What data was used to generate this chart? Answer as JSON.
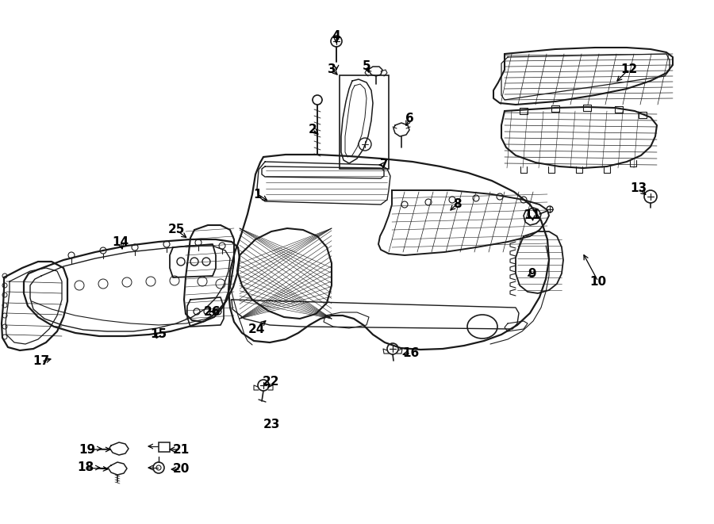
{
  "bg_color": "#ffffff",
  "line_color": "#1a1a1a",
  "figsize": [
    9.0,
    6.61
  ],
  "dpi": 100,
  "labels": [
    [
      "1",
      325,
      245,
      340,
      255
    ],
    [
      "2",
      394,
      163,
      404,
      172
    ],
    [
      "3",
      418,
      87,
      428,
      97
    ],
    [
      "4",
      424,
      45,
      424,
      58
    ],
    [
      "5",
      462,
      83,
      466,
      95
    ],
    [
      "6",
      516,
      150,
      510,
      162
    ],
    [
      "7",
      484,
      208,
      474,
      208
    ],
    [
      "8",
      576,
      257,
      565,
      268
    ],
    [
      "9",
      671,
      345,
      662,
      350
    ],
    [
      "10",
      754,
      355,
      734,
      318
    ],
    [
      "11",
      671,
      272,
      672,
      282
    ],
    [
      "12",
      793,
      87,
      775,
      105
    ],
    [
      "13",
      805,
      238,
      817,
      248
    ],
    [
      "14",
      152,
      305,
      155,
      318
    ],
    [
      "15",
      200,
      422,
      195,
      430
    ],
    [
      "16",
      518,
      445,
      504,
      448
    ],
    [
      "17",
      52,
      456,
      68,
      452
    ],
    [
      "18",
      108,
      590,
      140,
      592
    ],
    [
      "19",
      110,
      567,
      143,
      567
    ],
    [
      "20",
      228,
      592,
      212,
      592
    ],
    [
      "21",
      228,
      567,
      210,
      567
    ],
    [
      "22",
      342,
      482,
      336,
      492
    ],
    [
      "23",
      342,
      535,
      null,
      null
    ],
    [
      "24",
      323,
      415,
      338,
      402
    ],
    [
      "25",
      222,
      290,
      238,
      302
    ],
    [
      "26",
      268,
      393,
      262,
      393
    ]
  ]
}
